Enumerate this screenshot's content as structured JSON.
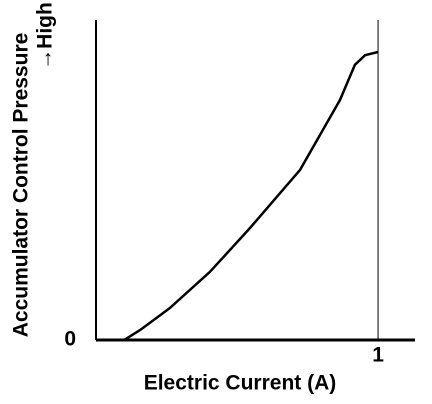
{
  "chart_data": {
    "type": "line",
    "xlabel": "Electric Current (A)",
    "ylabel": "Accumulator Control Pressure",
    "ylabel_note": "→High",
    "x": [
      0.1,
      0.156,
      0.262,
      0.404,
      0.546,
      0.723,
      0.865,
      0.918,
      0.954,
      1.0
    ],
    "values": [
      0,
      0.031,
      0.1,
      0.213,
      0.35,
      0.531,
      0.75,
      0.86,
      0.89,
      0.9
    ],
    "color": "#000000",
    "xlim": [
      0,
      1.131
    ],
    "ylim": [
      0,
      1
    ],
    "xticks": [
      1
    ],
    "yticks": [
      0
    ]
  }
}
